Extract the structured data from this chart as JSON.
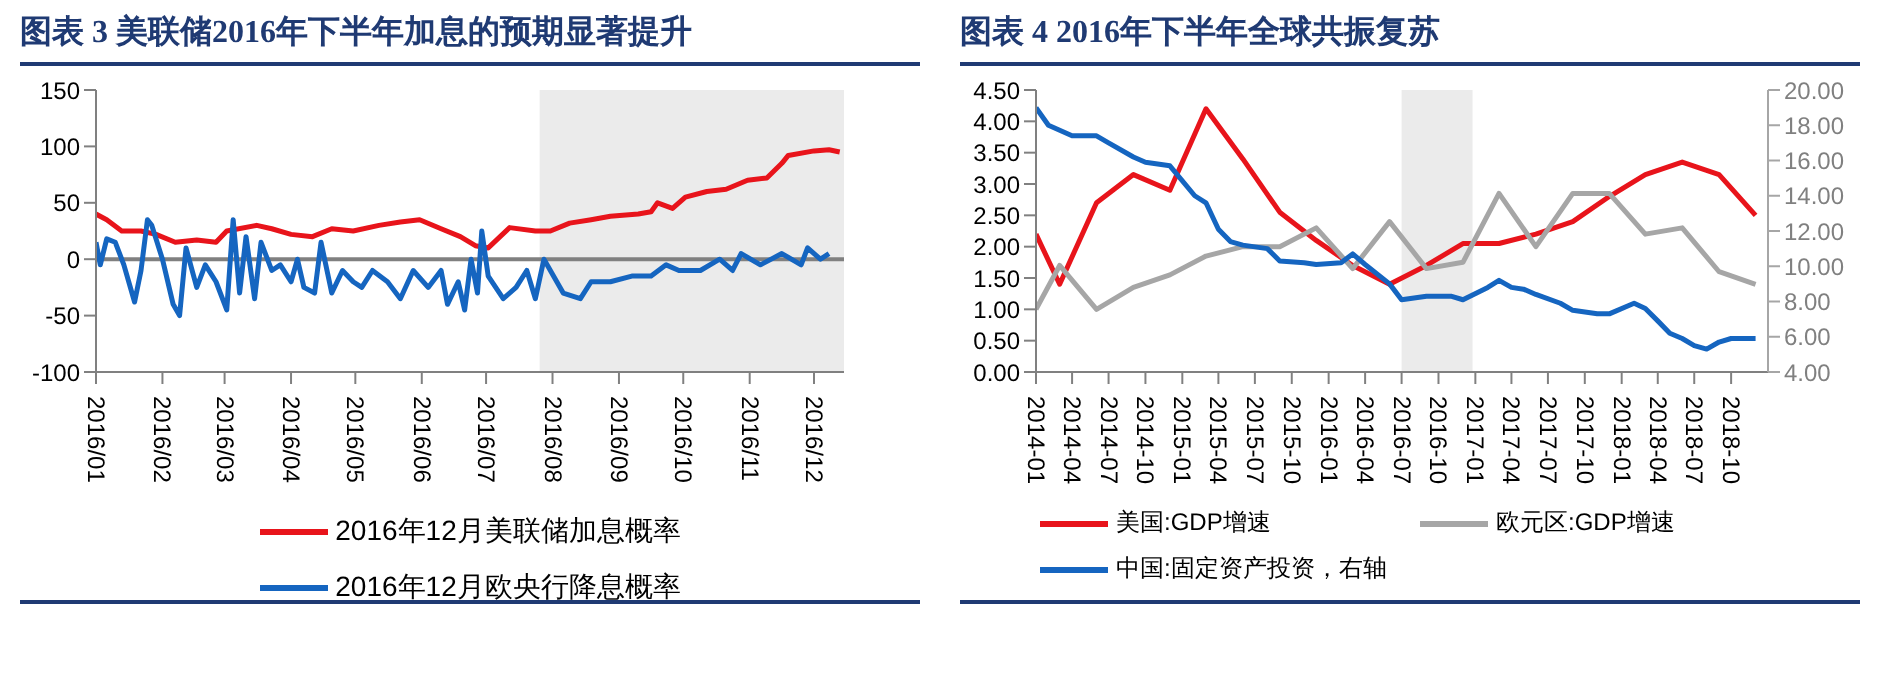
{
  "chart_data": [
    {
      "type": "line",
      "title": "图表 3   美联储2016年下半年加息的预期显著提升",
      "xlim": [
        "2016-01-01",
        "2016-12-15"
      ],
      "xticks": [
        {
          "value": "2016-01-01",
          "label": "2016/01"
        },
        {
          "value": "2016-02-01",
          "label": "2016/02"
        },
        {
          "value": "2016-03-01",
          "label": "2016/03"
        },
        {
          "value": "2016-04-01",
          "label": "2016/04"
        },
        {
          "value": "2016-05-01",
          "label": "2016/05"
        },
        {
          "value": "2016-06-01",
          "label": "2016/06"
        },
        {
          "value": "2016-07-01",
          "label": "2016/07"
        },
        {
          "value": "2016-08-01",
          "label": "2016/08"
        },
        {
          "value": "2016-09-01",
          "label": "2016/09"
        },
        {
          "value": "2016-10-01",
          "label": "2016/10"
        },
        {
          "value": "2016-11-01",
          "label": "2016/11"
        },
        {
          "value": "2016-12-01",
          "label": "2016/12"
        }
      ],
      "ylim": [
        -100,
        150
      ],
      "yticks": [
        -100,
        -50,
        0,
        50,
        100,
        150
      ],
      "grid": false,
      "legend": "bottom",
      "marker": "none",
      "line_style": "solid",
      "ref_lines": [
        {
          "axis": "y",
          "value": 0,
          "color": "#808080"
        }
      ],
      "bands": [
        {
          "axis": "x",
          "from": "2016-07-26",
          "to": "2016-12-15",
          "color": "#ebebeb"
        }
      ],
      "series": [
        {
          "name": "2016年12月美联储加息概率",
          "color": "#e8141b",
          "x": [
            "2016-01-01",
            "2016-01-06",
            "2016-01-13",
            "2016-01-22",
            "2016-01-29",
            "2016-02-07",
            "2016-02-17",
            "2016-02-26",
            "2016-03-02",
            "2016-03-16",
            "2016-03-23",
            "2016-04-01",
            "2016-04-11",
            "2016-04-20",
            "2016-04-30",
            "2016-05-12",
            "2016-05-22",
            "2016-05-31",
            "2016-06-10",
            "2016-06-19",
            "2016-06-26",
            "2016-07-02",
            "2016-07-12",
            "2016-07-24",
            "2016-07-31",
            "2016-08-09",
            "2016-08-19",
            "2016-08-28",
            "2016-09-10",
            "2016-09-16",
            "2016-09-19",
            "2016-09-26",
            "2016-10-02",
            "2016-10-12",
            "2016-10-21",
            "2016-10-31",
            "2016-11-09",
            "2016-11-16",
            "2016-11-19",
            "2016-12-01",
            "2016-12-08",
            "2016-12-13"
          ],
          "values": [
            40,
            35,
            25,
            25,
            22,
            15,
            17,
            15,
            25,
            30,
            27,
            22,
            20,
            27,
            25,
            30,
            33,
            35,
            27,
            20,
            12,
            10,
            28,
            25,
            25,
            32,
            35,
            38,
            40,
            42,
            50,
            45,
            55,
            60,
            62,
            70,
            72,
            85,
            92,
            96,
            97,
            95
          ]
        },
        {
          "name": "2016年12月欧央行降息概率",
          "color": "#1565c0",
          "x": [
            "2016-01-01",
            "2016-01-03",
            "2016-01-06",
            "2016-01-10",
            "2016-01-14",
            "2016-01-19",
            "2016-01-22",
            "2016-01-25",
            "2016-01-27",
            "2016-02-01",
            "2016-02-06",
            "2016-02-09",
            "2016-02-12",
            "2016-02-17",
            "2016-02-21",
            "2016-02-26",
            "2016-03-02",
            "2016-03-05",
            "2016-03-08",
            "2016-03-11",
            "2016-03-15",
            "2016-03-18",
            "2016-03-23",
            "2016-03-27",
            "2016-04-01",
            "2016-04-04",
            "2016-04-07",
            "2016-04-12",
            "2016-04-15",
            "2016-04-20",
            "2016-04-25",
            "2016-04-30",
            "2016-05-04",
            "2016-05-09",
            "2016-05-16",
            "2016-05-22",
            "2016-05-28",
            "2016-06-04",
            "2016-06-10",
            "2016-06-13",
            "2016-06-18",
            "2016-06-21",
            "2016-06-24",
            "2016-06-27",
            "2016-06-29",
            "2016-07-02",
            "2016-07-09",
            "2016-07-15",
            "2016-07-20",
            "2016-07-24",
            "2016-07-28",
            "2016-08-06",
            "2016-08-14",
            "2016-08-19",
            "2016-08-28",
            "2016-09-07",
            "2016-09-16",
            "2016-09-23",
            "2016-09-29",
            "2016-10-09",
            "2016-10-18",
            "2016-10-24",
            "2016-10-28",
            "2016-11-06",
            "2016-11-16",
            "2016-11-25",
            "2016-11-28",
            "2016-12-04",
            "2016-12-08"
          ],
          "values": [
            15,
            -5,
            18,
            15,
            -5,
            -38,
            -10,
            35,
            30,
            0,
            -40,
            -50,
            10,
            -25,
            -5,
            -20,
            -45,
            35,
            -30,
            20,
            -35,
            15,
            -10,
            -5,
            -20,
            0,
            -25,
            -30,
            15,
            -30,
            -10,
            -20,
            -25,
            -10,
            -20,
            -35,
            -10,
            -25,
            -10,
            -40,
            -20,
            -45,
            0,
            -30,
            25,
            -15,
            -35,
            -25,
            -10,
            -35,
            0,
            -30,
            -35,
            -20,
            -20,
            -15,
            -15,
            -5,
            -10,
            -10,
            0,
            -10,
            5,
            -5,
            5,
            -5,
            10,
            0,
            5
          ]
        }
      ]
    },
    {
      "type": "line",
      "title": "图表 4   2016年下半年全球共振复苏",
      "xlim": [
        "2014-01",
        "2019-01"
      ],
      "xticks": [
        "2014-01",
        "2014-04",
        "2014-07",
        "2014-10",
        "2015-01",
        "2015-04",
        "2015-07",
        "2015-10",
        "2016-01",
        "2016-04",
        "2016-07",
        "2016-10",
        "2017-01",
        "2017-04",
        "2017-07",
        "2017-10",
        "2018-01",
        "2018-04",
        "2018-07",
        "2018-10"
      ],
      "ylim": [
        0,
        4.5
      ],
      "yticks": [
        {
          "value": 0,
          "label": "0.00"
        },
        {
          "value": 0.5,
          "label": "0.50"
        },
        {
          "value": 1,
          "label": "1.00"
        },
        {
          "value": 1.5,
          "label": "1.50"
        },
        {
          "value": 2,
          "label": "2.00"
        },
        {
          "value": 2.5,
          "label": "2.50"
        },
        {
          "value": 3,
          "label": "3.00"
        },
        {
          "value": 3.5,
          "label": "3.50"
        },
        {
          "value": 4,
          "label": "4.00"
        },
        {
          "value": 4.5,
          "label": "4.50"
        }
      ],
      "y2lim": [
        4,
        20
      ],
      "y2ticks": [
        {
          "value": 4,
          "label": "4.00"
        },
        {
          "value": 6,
          "label": "6.00"
        },
        {
          "value": 8,
          "label": "8.00"
        },
        {
          "value": 10,
          "label": "10.00"
        },
        {
          "value": 12,
          "label": "12.00"
        },
        {
          "value": 14,
          "label": "14.00"
        },
        {
          "value": 16,
          "label": "16.00"
        },
        {
          "value": 18,
          "label": "18.00"
        },
        {
          "value": 20,
          "label": "20.00"
        }
      ],
      "grid": false,
      "legend": "bottom",
      "marker": "none",
      "line_style": "solid",
      "bands": [
        {
          "axis": "x",
          "from": "2016-07",
          "to": "2016-12-25",
          "color": "#ebebeb"
        }
      ],
      "series": [
        {
          "name": "美国:GDP增速",
          "color": "#e8141b",
          "x": [
            "2014-01",
            "2014-03",
            "2014-06",
            "2014-09",
            "2014-12",
            "2015-03",
            "2015-06",
            "2015-09",
            "2015-12",
            "2016-03",
            "2016-06",
            "2016-09",
            "2016-12",
            "2017-03",
            "2017-06",
            "2017-09",
            "2017-12",
            "2018-03",
            "2018-06",
            "2018-09",
            "2018-12"
          ],
          "values": [
            2.2,
            1.4,
            2.7,
            3.15,
            2.9,
            4.2,
            3.4,
            2.55,
            2.1,
            1.7,
            1.4,
            1.7,
            2.05,
            2.05,
            2.2,
            2.4,
            2.8,
            3.15,
            3.35,
            3.15,
            2.5
          ]
        },
        {
          "name": "欧元区:GDP增速",
          "color": "#a6a6a6",
          "x": [
            "2014-01",
            "2014-03",
            "2014-06",
            "2014-09",
            "2014-12",
            "2015-03",
            "2015-06",
            "2015-09",
            "2015-12",
            "2016-03",
            "2016-06",
            "2016-09",
            "2016-12",
            "2017-03",
            "2017-06",
            "2017-09",
            "2017-12",
            "2018-03",
            "2018-06",
            "2018-09",
            "2018-12"
          ],
          "values": [
            1.0,
            1.7,
            1.0,
            1.35,
            1.55,
            1.85,
            2.0,
            2.0,
            2.3,
            1.65,
            2.4,
            1.65,
            1.75,
            2.85,
            2.0,
            2.85,
            2.85,
            2.2,
            2.3,
            1.6,
            1.4
          ]
        },
        {
          "name": "中国:固定资产投资，右轴",
          "color": "#1565c0",
          "axis": "y2",
          "x": [
            "2014-01",
            "2014-02",
            "2014-04",
            "2014-05",
            "2014-06",
            "2014-07",
            "2014-09",
            "2014-10",
            "2014-12",
            "2015-02",
            "2015-03",
            "2015-04",
            "2015-05",
            "2015-06",
            "2015-08",
            "2015-09",
            "2015-11",
            "2015-12",
            "2016-02",
            "2016-03",
            "2016-04",
            "2016-06",
            "2016-07",
            "2016-08",
            "2016-09",
            "2016-11",
            "2016-12",
            "2017-02",
            "2017-03",
            "2017-04",
            "2017-05",
            "2017-06",
            "2017-08",
            "2017-09",
            "2017-11",
            "2017-12",
            "2018-02",
            "2018-03",
            "2018-04",
            "2018-05",
            "2018-06",
            "2018-07",
            "2018-08",
            "2018-09",
            "2018-10",
            "2018-12"
          ],
          "values": [
            19.0,
            18.0,
            17.4,
            17.4,
            17.4,
            17.0,
            16.2,
            15.9,
            15.7,
            14.0,
            13.6,
            12.1,
            11.4,
            11.2,
            11.0,
            10.3,
            10.2,
            10.1,
            10.2,
            10.7,
            10.1,
            9.0,
            8.1,
            8.2,
            8.3,
            8.3,
            8.1,
            8.8,
            9.2,
            8.8,
            8.7,
            8.4,
            7.9,
            7.5,
            7.3,
            7.3,
            7.9,
            7.6,
            6.9,
            6.2,
            5.9,
            5.5,
            5.3,
            5.7,
            5.9,
            5.9
          ]
        }
      ]
    }
  ]
}
